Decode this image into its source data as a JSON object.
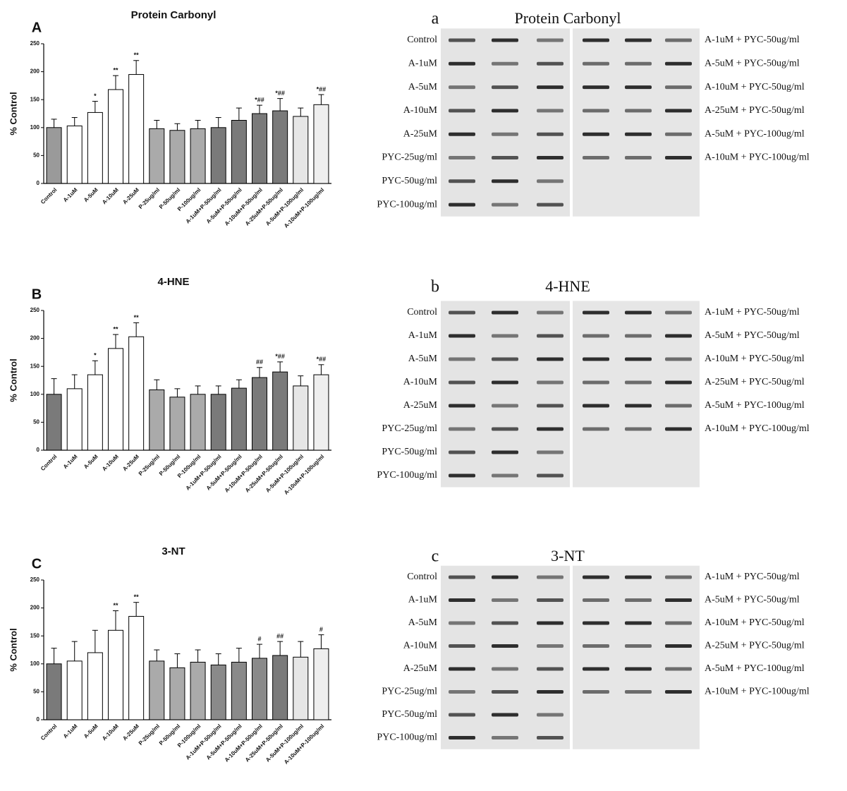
{
  "chart_data": [
    {
      "type": "bar",
      "panel": "A",
      "title": "Protein Carbonyl",
      "y_label": "% Control",
      "categories": [
        "Control",
        "A-1uM",
        "A-5uM",
        "A-10uM",
        "A-25uM",
        "P-25ug/ml",
        "P-50ug/ml",
        "P-100ug/ml",
        "A-1uM+P-50ug/ml",
        "A-5uM+P-50ug/ml",
        "A-10uM+P-50ug/ml",
        "A-25uM+P-50ug/ml",
        "A-5uM+P-100ug/ml",
        "A-10uM+P-100ug/ml"
      ],
      "values": [
        100,
        103,
        127,
        168,
        195,
        98,
        95,
        98,
        100,
        113,
        125,
        130,
        120,
        141
      ],
      "errors": [
        15,
        15,
        20,
        25,
        25,
        15,
        12,
        15,
        18,
        22,
        15,
        22,
        15,
        18
      ],
      "significance": [
        null,
        null,
        "*",
        "**",
        "**",
        null,
        null,
        null,
        null,
        null,
        "*##",
        "*##",
        null,
        "*##"
      ],
      "colors": [
        "#9a9a9a",
        "#ffffff",
        "#ffffff",
        "#ffffff",
        "#ffffff",
        "#aaaaaa",
        "#aaaaaa",
        "#aaaaaa",
        "#7a7a7a",
        "#7a7a7a",
        "#7a7a7a",
        "#7a7a7a",
        "#e6e6e6",
        "#efefef"
      ],
      "ylim": [
        0,
        250
      ],
      "yticks": [
        0,
        50,
        100,
        150,
        200,
        250
      ]
    },
    {
      "type": "bar",
      "panel": "B",
      "title": "4-HNE",
      "y_label": "% Control",
      "categories": [
        "Control",
        "A-1uM",
        "A-5uM",
        "A-10uM",
        "A-25uM",
        "P-25ug/ml",
        "P-50ug/ml",
        "P-100ug/ml",
        "A-1uM+P-50ug/ml",
        "A-5uM+P-50ug/ml",
        "A-10uM+P-50ug/ml",
        "A-25uM+P-50ug/ml",
        "A-5uM+P-100ug/ml",
        "A-10uM+P-100ug/ml"
      ],
      "values": [
        100,
        110,
        135,
        182,
        203,
        108,
        95,
        100,
        100,
        111,
        130,
        140,
        115,
        135
      ],
      "errors": [
        28,
        25,
        25,
        25,
        25,
        18,
        15,
        15,
        15,
        15,
        18,
        18,
        18,
        18
      ],
      "significance": [
        null,
        null,
        "*",
        "**",
        "**",
        null,
        null,
        null,
        null,
        null,
        "##",
        "*##",
        null,
        "*##"
      ],
      "colors": [
        "#7a7a7a",
        "#ffffff",
        "#ffffff",
        "#ffffff",
        "#ffffff",
        "#aaaaaa",
        "#aaaaaa",
        "#aaaaaa",
        "#7a7a7a",
        "#7a7a7a",
        "#7a7a7a",
        "#7a7a7a",
        "#e6e6e6",
        "#efefef"
      ],
      "ylim": [
        0,
        250
      ],
      "yticks": [
        0,
        50,
        100,
        150,
        200,
        250
      ]
    },
    {
      "type": "bar",
      "panel": "C",
      "title": "3-NT",
      "y_label": "% Control",
      "categories": [
        "Control",
        "A-1uM",
        "A-5uM",
        "A-10uM",
        "A-25uM",
        "P-25ug/ml",
        "P-50ug/ml",
        "P-100ug/ml",
        "A-1uM+P-50ug/ml",
        "A-5uM+P-50ug/ml",
        "A-10uM+P-50ug/ml",
        "A-25uM+P-50ug/ml",
        "A-5uM+P-100ug/ml",
        "A-10uM+P-100ug/ml"
      ],
      "values": [
        100,
        105,
        120,
        160,
        185,
        105,
        93,
        103,
        98,
        103,
        110,
        115,
        112,
        127
      ],
      "errors": [
        28,
        35,
        40,
        35,
        25,
        20,
        25,
        22,
        20,
        25,
        25,
        25,
        28,
        25
      ],
      "significance": [
        null,
        null,
        null,
        "**",
        "**",
        null,
        null,
        null,
        null,
        null,
        "#",
        "##",
        null,
        "#"
      ],
      "colors": [
        "#7a7a7a",
        "#ffffff",
        "#ffffff",
        "#ffffff",
        "#ffffff",
        "#aaaaaa",
        "#aaaaaa",
        "#aaaaaa",
        "#8a8a8a",
        "#8a8a8a",
        "#8a8a8a",
        "#7a7a7a",
        "#e6e6e6",
        "#efefef"
      ],
      "ylim": [
        0,
        250
      ],
      "yticks": [
        0,
        50,
        100,
        150,
        200,
        250
      ]
    }
  ],
  "blots": [
    {
      "panel": "a",
      "title": "Protein Carbonyl",
      "left_labels": [
        "Control",
        "A-1uM",
        "A-5uM",
        "A-10uM",
        "A-25uM",
        "PYC-25ug/ml",
        "PYC-50ug/ml",
        "PYC-100ug/ml"
      ],
      "right_labels": [
        "A-1uM + PYC-50ug/ml",
        "A-5uM + PYC-50ug/ml",
        "A-10uM + PYC-50ug/ml",
        "A-25uM + PYC-50ug/ml",
        "A-5uM + PYC-100ug/ml",
        "A-10uM + PYC-100ug/ml"
      ]
    },
    {
      "panel": "b",
      "title": "4-HNE",
      "left_labels": [
        "Control",
        "A-1uM",
        "A-5uM",
        "A-10uM",
        "A-25uM",
        "PYC-25ug/ml",
        "PYC-50ug/ml",
        "PYC-100ug/ml"
      ],
      "right_labels": [
        "A-1uM + PYC-50ug/ml",
        "A-5uM + PYC-50ug/ml",
        "A-10uM + PYC-50ug/ml",
        "A-25uM + PYC-50ug/ml",
        "A-5uM + PYC-100ug/ml",
        "A-10uM + PYC-100ug/ml"
      ]
    },
    {
      "panel": "c",
      "title": "3-NT",
      "left_labels": [
        "Control",
        "A-1uM",
        "A-5uM",
        "A-10uM",
        "A-25uM",
        "PYC-25ug/ml",
        "PYC-50ug/ml",
        "PYC-100ug/ml"
      ],
      "right_labels": [
        "A-1uM + PYC-50ug/ml",
        "A-5uM + PYC-50ug/ml",
        "A-10uM + PYC-50ug/ml",
        "A-25uM + PYC-50ug/ml",
        "A-5uM + PYC-100ug/ml",
        "A-10uM + PYC-100ug/ml"
      ]
    }
  ]
}
